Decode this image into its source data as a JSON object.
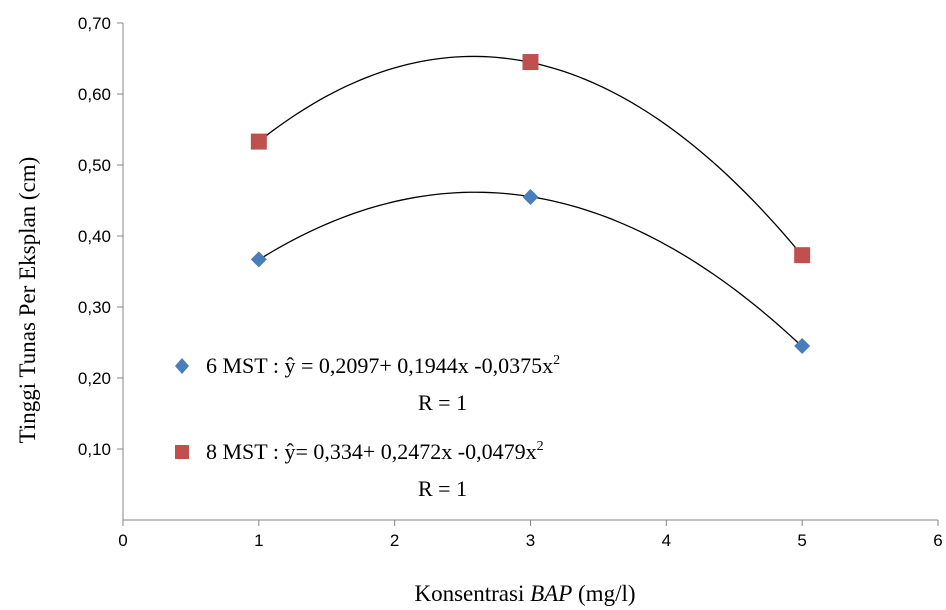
{
  "chart_data": {
    "type": "scatter",
    "title": "",
    "xlabel_prefix": "Konsentrasi ",
    "xlabel_italic": "BAP",
    "xlabel_suffix": " (mg/l)",
    "ylabel": "Tinggi Tunas Per Eksplan (cm)",
    "xlim": [
      0,
      6
    ],
    "ylim": [
      0,
      0.7
    ],
    "xticks": [
      "0",
      "1",
      "2",
      "3",
      "4",
      "5",
      "6"
    ],
    "yticks": [
      "0,10",
      "0,20",
      "0,30",
      "0,40",
      "0,50",
      "0,60",
      "0,70"
    ],
    "grid": false,
    "legend_position": "bottom-left",
    "series": [
      {
        "name": "6 MST",
        "marker": "diamond",
        "color": "#4a7ebb",
        "x": [
          1,
          3,
          5
        ],
        "y": [
          0.367,
          0.455,
          0.245
        ],
        "trend": {
          "a": 0.2097,
          "b": 0.1944,
          "c": -0.0375
        },
        "legend_prefix": "6 MST : ŷ = 0,2097+ 0,1944x  -0,0375x",
        "legend_sup": "2",
        "legend_r": "R = 1"
      },
      {
        "name": "8 MST",
        "marker": "square",
        "color": "#c0504d",
        "x": [
          1,
          3,
          5
        ],
        "y": [
          0.533,
          0.645,
          0.373
        ],
        "trend": {
          "a": 0.334,
          "b": 0.2472,
          "c": -0.0479
        },
        "legend_prefix": "8 MST : ŷ= 0,334+ 0,2472x  -0,0479x",
        "legend_sup": "2",
        "legend_r": "R = 1"
      }
    ]
  }
}
